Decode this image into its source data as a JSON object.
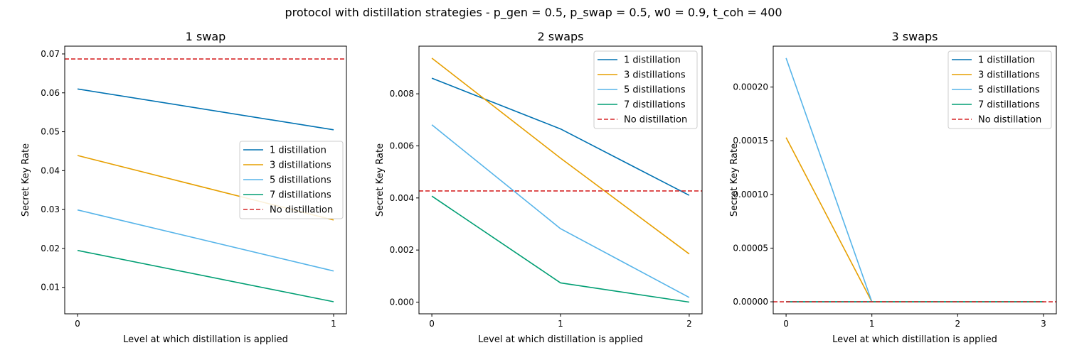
{
  "figure": {
    "suptitle": "protocol with distillation strategies - p_gen = 0.5, p_swap = 0.5, w0 = 0.9, t_coh = 400"
  },
  "colors": {
    "1 distillation": "#0072b2",
    "3 distillations": "#e69f00",
    "5 distillations": "#56b4e9",
    "7 distillations": "#009e73",
    "No distillation": "#d62728"
  },
  "chart_data": [
    {
      "type": "line",
      "title": "1 swap",
      "xlabel": "Level at which distillation is applied",
      "ylabel": "Secret Key Rate",
      "x": [
        0,
        1
      ],
      "xlim": [
        -0.05,
        1.05
      ],
      "ylim": [
        0.0032,
        0.072
      ],
      "xticks": [
        0,
        1
      ],
      "xtick_labels": [
        "0",
        "1"
      ],
      "yticks": [
        0.01,
        0.02,
        0.03,
        0.04,
        0.05,
        0.06,
        0.07
      ],
      "ytick_labels": [
        "0.01",
        "0.02",
        "0.03",
        "0.04",
        "0.05",
        "0.06",
        "0.07"
      ],
      "legend_position": "center-right",
      "series": [
        {
          "name": "1 distillation",
          "values": [
            0.061,
            0.0505
          ]
        },
        {
          "name": "3 distillations",
          "values": [
            0.0439,
            0.0273
          ]
        },
        {
          "name": "5 distillations",
          "values": [
            0.0299,
            0.0142
          ]
        },
        {
          "name": "7 distillations",
          "values": [
            0.0195,
            0.0063
          ]
        }
      ],
      "hline": {
        "name": "No distillation",
        "value": 0.0687,
        "style": "dashed"
      }
    },
    {
      "type": "line",
      "title": "2 swaps",
      "xlabel": "Level at which distillation is applied",
      "ylabel": "Secret Key Rate",
      "x": [
        0,
        1,
        2
      ],
      "xlim": [
        -0.1,
        2.1
      ],
      "ylim": [
        -0.00045,
        0.00983
      ],
      "xticks": [
        0,
        1,
        2
      ],
      "xtick_labels": [
        "0",
        "1",
        "2"
      ],
      "yticks": [
        0,
        0.002,
        0.004,
        0.006,
        0.008
      ],
      "ytick_labels": [
        "0.000",
        "0.002",
        "0.004",
        "0.006",
        "0.008"
      ],
      "legend_position": "upper-right",
      "series": [
        {
          "name": "1 distillation",
          "values": [
            0.0086,
            0.00665,
            0.0041
          ]
        },
        {
          "name": "3 distillations",
          "values": [
            0.00937,
            0.00553,
            0.00185
          ]
        },
        {
          "name": "5 distillations",
          "values": [
            0.00681,
            0.00282,
            0.00018
          ]
        },
        {
          "name": "7 distillations",
          "values": [
            0.00407,
            0.00074,
            0.0
          ]
        }
      ],
      "hline": {
        "name": "No distillation",
        "value": 0.00427,
        "style": "dashed"
      }
    },
    {
      "type": "line",
      "title": "3 swaps",
      "xlabel": "Level at which distillation is applied",
      "ylabel": "Secret Key Rate",
      "x": [
        0,
        1,
        2,
        3
      ],
      "xlim": [
        -0.15,
        3.15
      ],
      "ylim": [
        -1.12e-05,
        0.0002381
      ],
      "xticks": [
        0,
        1,
        2,
        3
      ],
      "xtick_labels": [
        "0",
        "1",
        "2",
        "3"
      ],
      "yticks": [
        0,
        5e-05,
        0.0001,
        0.00015,
        0.0002
      ],
      "ytick_labels": [
        "0.00000",
        "0.00005",
        "0.00010",
        "0.00015",
        "0.00020"
      ],
      "legend_position": "upper-right",
      "series": [
        {
          "name": "1 distillation",
          "values": [
            0,
            0,
            0,
            0
          ]
        },
        {
          "name": "3 distillations",
          "values": [
            0.000153,
            0,
            0,
            0
          ]
        },
        {
          "name": "5 distillations",
          "values": [
            0.000227,
            0,
            0,
            0
          ]
        },
        {
          "name": "7 distillations",
          "values": [
            0,
            0,
            0,
            0
          ]
        }
      ],
      "hline": {
        "name": "No distillation",
        "value": 0,
        "style": "dashed"
      }
    }
  ]
}
